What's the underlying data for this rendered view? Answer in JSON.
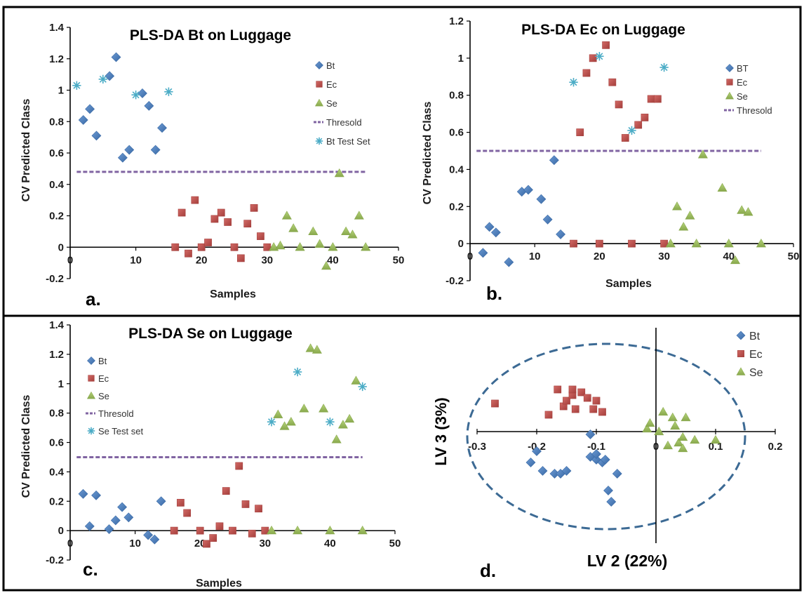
{
  "chart_data": [
    {
      "panel": "a.",
      "type": "scatter",
      "title": "PLS-DA Bt on Luggage",
      "xlabel": "Samples",
      "ylabel": "CV Predicted Class",
      "xlim": [
        0,
        50
      ],
      "ylim": [
        -0.2,
        1.4
      ],
      "xticks": [
        0,
        10,
        20,
        30,
        40,
        50
      ],
      "yticks": [
        -0.2,
        0,
        0.2,
        0.4,
        0.6,
        0.8,
        1,
        1.2,
        1.4
      ],
      "grid": false,
      "legend_position": "right",
      "threshold": {
        "name": "Thresold",
        "value": 0.48,
        "x": [
          1,
          45
        ],
        "color": "#8064a2"
      },
      "series": [
        {
          "name": "Bt",
          "marker": "diamond",
          "color": "#4f81bd",
          "points": [
            [
              2,
              0.81
            ],
            [
              3,
              0.88
            ],
            [
              4,
              0.71
            ],
            [
              6,
              1.09
            ],
            [
              7,
              1.21
            ],
            [
              8,
              0.57
            ],
            [
              9,
              0.62
            ],
            [
              11,
              0.98
            ],
            [
              12,
              0.9
            ],
            [
              13,
              0.62
            ],
            [
              14,
              0.76
            ]
          ]
        },
        {
          "name": "Ec",
          "marker": "square",
          "color": "#c0504d",
          "points": [
            [
              16,
              0
            ],
            [
              17,
              0.22
            ],
            [
              18,
              -0.04
            ],
            [
              19,
              0.3
            ],
            [
              20,
              0
            ],
            [
              21,
              0.03
            ],
            [
              22,
              0.18
            ],
            [
              23,
              0.22
            ],
            [
              24,
              0.16
            ],
            [
              25,
              0
            ],
            [
              26,
              -0.07
            ],
            [
              27,
              0.15
            ],
            [
              28,
              0.25
            ],
            [
              29,
              0.07
            ],
            [
              30,
              0
            ]
          ]
        },
        {
          "name": "Se",
          "marker": "triangle",
          "color": "#9bbb59",
          "points": [
            [
              31,
              0
            ],
            [
              32,
              0.01
            ],
            [
              33,
              0.2
            ],
            [
              34,
              0.12
            ],
            [
              35,
              0
            ],
            [
              37,
              0.1
            ],
            [
              38,
              0.02
            ],
            [
              39,
              -0.12
            ],
            [
              40,
              0
            ],
            [
              41,
              0.47
            ],
            [
              42,
              0.1
            ],
            [
              43,
              0.08
            ],
            [
              44,
              0.2
            ],
            [
              45,
              0
            ]
          ]
        },
        {
          "name": "Bt Test Set",
          "marker": "asterisk",
          "color": "#4bacc6",
          "points": [
            [
              1,
              1.03
            ],
            [
              5,
              1.07
            ],
            [
              10,
              0.97
            ],
            [
              15,
              0.99
            ]
          ]
        }
      ]
    },
    {
      "panel": "b.",
      "type": "scatter",
      "title": "PLS-DA Ec on Luggage",
      "xlabel": "Samples",
      "ylabel": "CV Predicted Class",
      "xlim": [
        0,
        50
      ],
      "ylim": [
        -0.2,
        1.2
      ],
      "xticks": [
        0,
        10,
        20,
        30,
        40,
        50
      ],
      "yticks": [
        -0.2,
        0,
        0.2,
        0.4,
        0.6,
        0.8,
        1,
        1.2
      ],
      "grid": false,
      "legend_position": "right",
      "threshold": {
        "name": "Thresold",
        "value": 0.5,
        "x": [
          1,
          45
        ],
        "color": "#8064a2"
      },
      "series": [
        {
          "name": "BT",
          "marker": "diamond",
          "color": "#4f81bd",
          "points": [
            [
              2,
              -0.05
            ],
            [
              3,
              0.09
            ],
            [
              4,
              0.06
            ],
            [
              6,
              -0.1
            ],
            [
              8,
              0.28
            ],
            [
              9,
              0.29
            ],
            [
              11,
              0.24
            ],
            [
              12,
              0.13
            ],
            [
              13,
              0.45
            ],
            [
              14,
              0.05
            ]
          ]
        },
        {
          "name": "Ec",
          "marker": "square",
          "color": "#c0504d",
          "points": [
            [
              16,
              0
            ],
            [
              17,
              0.6
            ],
            [
              18,
              0.92
            ],
            [
              19,
              1
            ],
            [
              20,
              0
            ],
            [
              21,
              1.07
            ],
            [
              22,
              0.87
            ],
            [
              23,
              0.75
            ],
            [
              24,
              0.57
            ],
            [
              25,
              0
            ],
            [
              26,
              0.64
            ],
            [
              27,
              0.68
            ],
            [
              28,
              0.78
            ],
            [
              29,
              0.78
            ],
            [
              30,
              0
            ]
          ]
        },
        {
          "name": "Se",
          "marker": "triangle",
          "color": "#9bbb59",
          "points": [
            [
              31,
              0
            ],
            [
              32,
              0.2
            ],
            [
              33,
              0.09
            ],
            [
              34,
              0.15
            ],
            [
              35,
              0
            ],
            [
              36,
              0.48
            ],
            [
              39,
              0.3
            ],
            [
              40,
              0
            ],
            [
              41,
              -0.09
            ],
            [
              42,
              0.18
            ],
            [
              43,
              0.17
            ],
            [
              45,
              0
            ]
          ]
        },
        {
          "name": "",
          "marker": "asterisk",
          "color": "#4bacc6",
          "points": [
            [
              16,
              0.87
            ],
            [
              20,
              1.01
            ],
            [
              25,
              0.61
            ],
            [
              30,
              0.95
            ]
          ]
        }
      ]
    },
    {
      "panel": "c.",
      "type": "scatter",
      "title": "PLS-DA Se on Luggage",
      "xlabel": "Samples",
      "ylabel": "CV Predicted Class",
      "xlim": [
        0,
        50
      ],
      "ylim": [
        -0.2,
        1.4
      ],
      "xticks": [
        0,
        10,
        20,
        30,
        40,
        50
      ],
      "yticks": [
        -0.2,
        0,
        0.2,
        0.4,
        0.6,
        0.8,
        1,
        1.2,
        1.4
      ],
      "grid": false,
      "legend_position": "left",
      "threshold": {
        "name": "Thresold",
        "value": 0.5,
        "x": [
          1,
          45
        ],
        "color": "#8064a2"
      },
      "series": [
        {
          "name": "Bt",
          "marker": "diamond",
          "color": "#4f81bd",
          "points": [
            [
              2,
              0.25
            ],
            [
              3,
              0.03
            ],
            [
              4,
              0.24
            ],
            [
              6,
              0.01
            ],
            [
              7,
              0.07
            ],
            [
              8,
              0.16
            ],
            [
              9,
              0.09
            ],
            [
              12,
              -0.03
            ],
            [
              13,
              -0.06
            ],
            [
              14,
              0.2
            ]
          ]
        },
        {
          "name": "Ec",
          "marker": "square",
          "color": "#c0504d",
          "points": [
            [
              16,
              0
            ],
            [
              17,
              0.19
            ],
            [
              18,
              0.12
            ],
            [
              20,
              0
            ],
            [
              21,
              -0.09
            ],
            [
              22,
              -0.05
            ],
            [
              23,
              0.03
            ],
            [
              24,
              0.27
            ],
            [
              25,
              0
            ],
            [
              26,
              0.44
            ],
            [
              27,
              0.18
            ],
            [
              28,
              -0.02
            ],
            [
              29,
              0.15
            ],
            [
              30,
              0
            ]
          ]
        },
        {
          "name": "Se",
          "marker": "triangle",
          "color": "#9bbb59",
          "points": [
            [
              31,
              0
            ],
            [
              32,
              0.79
            ],
            [
              33,
              0.71
            ],
            [
              34,
              0.74
            ],
            [
              35,
              0
            ],
            [
              36,
              0.83
            ],
            [
              37,
              1.24
            ],
            [
              38,
              1.23
            ],
            [
              39,
              0.83
            ],
            [
              40,
              0
            ],
            [
              41,
              0.62
            ],
            [
              42,
              0.72
            ],
            [
              43,
              0.76
            ],
            [
              44,
              1.02
            ],
            [
              45,
              0
            ]
          ]
        },
        {
          "name": "Se Test set",
          "marker": "asterisk",
          "color": "#4bacc6",
          "points": [
            [
              31,
              0.74
            ],
            [
              35,
              1.08
            ],
            [
              40,
              0.74
            ],
            [
              45,
              0.98
            ]
          ]
        }
      ]
    },
    {
      "panel": "d.",
      "type": "scatter",
      "title": "",
      "xlabel": "LV 2 (22%)",
      "ylabel": "LV 3 (3%)",
      "xlim": [
        -0.3,
        0.2
      ],
      "xticks": [
        -0.3,
        -0.2,
        -0.1,
        0,
        0.1,
        0.2
      ],
      "grid": false,
      "legend_position": "top-right",
      "series": [
        {
          "name": "Bt",
          "marker": "diamond",
          "color": "#4f81bd",
          "points": [
            [
              -0.21,
              -0.11
            ],
            [
              -0.2,
              -0.07
            ],
            [
              -0.19,
              -0.14
            ],
            [
              -0.17,
              -0.15
            ],
            [
              -0.16,
              -0.15
            ],
            [
              -0.15,
              -0.14
            ],
            [
              -0.11,
              -0.09
            ],
            [
              -0.11,
              -0.01
            ],
            [
              -0.1,
              -0.1
            ],
            [
              -0.1,
              -0.08
            ],
            [
              -0.09,
              -0.11
            ],
            [
              -0.085,
              -0.1
            ],
            [
              -0.08,
              -0.21
            ],
            [
              -0.075,
              -0.25
            ],
            [
              -0.065,
              -0.15
            ]
          ]
        },
        {
          "name": "Ec",
          "marker": "square",
          "color": "#c0504d",
          "points": [
            [
              -0.27,
              0.1
            ],
            [
              -0.18,
              0.06
            ],
            [
              -0.165,
              0.15
            ],
            [
              -0.155,
              0.09
            ],
            [
              -0.15,
              0.11
            ],
            [
              -0.14,
              0.13
            ],
            [
              -0.14,
              0.15
            ],
            [
              -0.135,
              0.08
            ],
            [
              -0.125,
              0.14
            ],
            [
              -0.115,
              0.12
            ],
            [
              -0.105,
              0.08
            ],
            [
              -0.1,
              0.11
            ],
            [
              -0.09,
              0.07
            ]
          ]
        },
        {
          "name": "Se",
          "marker": "triangle",
          "color": "#9bbb59",
          "points": [
            [
              -0.015,
              0.01
            ],
            [
              -0.01,
              0.03
            ],
            [
              0.005,
              0
            ],
            [
              0.012,
              0.07
            ],
            [
              0.02,
              -0.05
            ],
            [
              0.028,
              0.05
            ],
            [
              0.032,
              0.02
            ],
            [
              0.038,
              -0.04
            ],
            [
              0.045,
              -0.02
            ],
            [
              0.045,
              -0.06
            ],
            [
              0.05,
              0.05
            ],
            [
              0.065,
              -0.03
            ],
            [
              0.1,
              -0.03
            ]
          ]
        }
      ]
    }
  ]
}
